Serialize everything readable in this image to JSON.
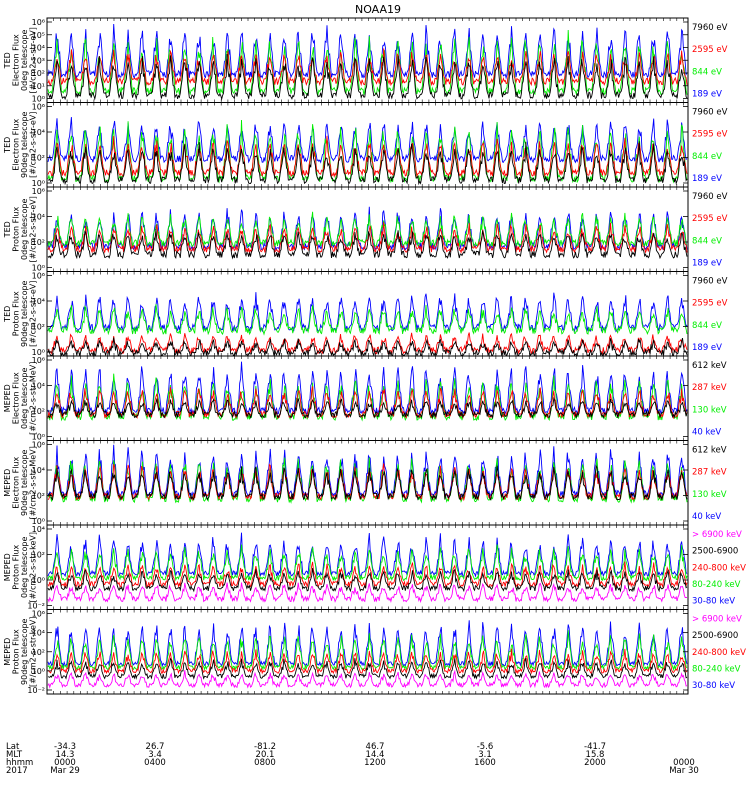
{
  "title": "NOAA19",
  "chart_data": {
    "type": "line",
    "title": "NOAA19",
    "colors": {
      "blue": "#0000ff",
      "red": "#ff0000",
      "green": "#00ee00",
      "black": "#000000",
      "magenta": "#ff00ff"
    },
    "x_axis": {
      "rows": [
        {
          "label": "Lat",
          "ticks": [
            "-34.3",
            "26.7",
            "-81.2",
            "46.7",
            "-5.6",
            "-41.7"
          ]
        },
        {
          "label": "MLT",
          "ticks": [
            "14.3",
            "3.4",
            "20.1",
            "14.4",
            "3.1",
            "15.8"
          ]
        },
        {
          "label": "hhmm",
          "ticks": [
            "0000",
            "0400",
            "0800",
            "1200",
            "1600",
            "2000",
            "0000"
          ]
        },
        {
          "label": "2017",
          "ticks": [
            "Mar 29",
            "",
            "",
            "",
            "",
            "",
            "Mar 30"
          ]
        }
      ]
    },
    "panels": [
      {
        "ylabel": [
          "TED",
          "Electron Flux",
          "0deg telescope",
          "[#/cm2-s-str-eV]"
        ],
        "yticks": [
          "10⁰",
          "10¹",
          "10²",
          "10³",
          "10⁴",
          "10⁵",
          "10⁶"
        ],
        "ylim_log": [
          0,
          6
        ],
        "series": [
          {
            "name": "7960 eV",
            "color": "black",
            "base": 0.5,
            "peak": 3.5
          },
          {
            "name": "2595 eV",
            "color": "red",
            "base": 1.5,
            "peak": 3.8
          },
          {
            "name": "844 eV",
            "color": "green",
            "base": 0.8,
            "peak": 5.0
          },
          {
            "name": "189 eV",
            "color": "blue",
            "base": 2.0,
            "peak": 5.6
          }
        ]
      },
      {
        "ylabel": [
          "TED",
          "Electron Flux",
          "90deg telescope",
          "[#/cm2-s-str-eV]"
        ],
        "yticks": [
          "10⁰",
          "10²",
          "10⁴",
          "10⁶"
        ],
        "ylim_log": [
          0,
          6
        ],
        "series": [
          {
            "name": "7960 eV",
            "color": "black",
            "base": 0.5,
            "peak": 3.2
          },
          {
            "name": "2595 eV",
            "color": "red",
            "base": 1.0,
            "peak": 3.6
          },
          {
            "name": "844 eV",
            "color": "green",
            "base": 0.6,
            "peak": 4.8
          },
          {
            "name": "189 eV",
            "color": "blue",
            "base": 2.0,
            "peak": 5.0
          }
        ]
      },
      {
        "ylabel": [
          "TED",
          "Proton Flux",
          "0deg telescope",
          "[#/cm2-s-str-eV]"
        ],
        "yticks": [
          "10⁰",
          "10²",
          "10⁴",
          "10⁶"
        ],
        "ylim_log": [
          0,
          6
        ],
        "series": [
          {
            "name": "7960 eV",
            "color": "black",
            "base": 1.2,
            "peak": 3.0
          },
          {
            "name": "2595 eV",
            "color": "red",
            "base": 1.6,
            "peak": 3.4
          },
          {
            "name": "844 eV",
            "color": "green",
            "base": 2.0,
            "peak": 4.2
          },
          {
            "name": "189 eV",
            "color": "blue",
            "base": 1.8,
            "peak": 4.6
          }
        ]
      },
      {
        "ylabel": [
          "TED",
          "Proton Flux",
          "90deg telescope",
          "[#/cm2-s-str-eV]"
        ],
        "yticks": [
          "10⁰",
          "10²",
          "10⁴",
          "10⁶"
        ],
        "ylim_log": [
          0,
          6
        ],
        "series": [
          {
            "name": "7960 eV",
            "color": "black",
            "base": 0.2,
            "peak": 1.2
          },
          {
            "name": "2595 eV",
            "color": "red",
            "base": 0.4,
            "peak": 1.6
          },
          {
            "name": "844 eV",
            "color": "green",
            "base": 1.8,
            "peak": 3.6
          },
          {
            "name": "189 eV",
            "color": "blue",
            "base": 2.0,
            "peak": 4.6
          }
        ]
      },
      {
        "ylabel": [
          "MEPED",
          "Electron Flux",
          "0deg telescope",
          "[#/cm2-s-str-MeV]"
        ],
        "yticks": [
          "10⁰",
          "10²",
          "10⁴",
          "10⁶"
        ],
        "ylim_log": [
          0,
          6.5
        ],
        "series": [
          {
            "name": "612 keV",
            "color": "black",
            "base": 2.0,
            "peak": 3.2
          },
          {
            "name": "287 keV",
            "color": "red",
            "base": 2.0,
            "peak": 4.2
          },
          {
            "name": "130 keV",
            "color": "green",
            "base": 1.8,
            "peak": 5.0
          },
          {
            "name": "40 keV",
            "color": "blue",
            "base": 2.3,
            "peak": 6.0
          }
        ]
      },
      {
        "ylabel": [
          "MEPED",
          "Electron Flux",
          "90deg telescope",
          "[#/cm2-s-str-MeV]"
        ],
        "yticks": [
          "10⁰",
          "10²",
          "10⁴",
          "10⁶"
        ],
        "ylim_log": [
          0,
          6.5
        ],
        "series": [
          {
            "name": "612 keV",
            "color": "black",
            "base": 2.2,
            "peak": 4.6
          },
          {
            "name": "287 keV",
            "color": "red",
            "base": 2.2,
            "peak": 4.8
          },
          {
            "name": "130 keV",
            "color": "green",
            "base": 2.0,
            "peak": 5.4
          },
          {
            "name": "40 keV",
            "color": "blue",
            "base": 2.4,
            "peak": 6.2
          }
        ]
      },
      {
        "ylabel": [
          "MEPED",
          "Proton Flux",
          "0deg telescope",
          "[#/cm2-s-str-keV]"
        ],
        "yticks": [
          "10⁻²",
          "10⁰",
          "10²",
          "10⁴"
        ],
        "ylim_log": [
          -3,
          5
        ],
        "series": [
          {
            "name": "> 6900 keV",
            "color": "magenta",
            "base": -2.0,
            "peak": -0.5
          },
          {
            "name": "2500-6900",
            "color": "black",
            "base": -1.0,
            "peak": 0.8
          },
          {
            "name": "240-800 keV",
            "color": "red",
            "base": -0.6,
            "peak": 1.5
          },
          {
            "name": "80-240 keV",
            "color": "green",
            "base": 0.0,
            "peak": 3.2
          },
          {
            "name": "30-80 keV",
            "color": "blue",
            "base": 0.4,
            "peak": 4.2
          }
        ]
      },
      {
        "ylabel": [
          "MEPED",
          "Proton Flux",
          "90deg telescope",
          "[#/cm2-s-str-keV]"
        ],
        "yticks": [
          "10⁻²",
          "10⁰",
          "10²",
          "10⁴",
          "10⁶"
        ],
        "ylim_log": [
          -3,
          6.5
        ],
        "series": [
          {
            "name": "> 6900 keV",
            "color": "magenta",
            "base": -2.0,
            "peak": -0.5
          },
          {
            "name": "2500-6900",
            "color": "black",
            "base": -1.0,
            "peak": 1.0
          },
          {
            "name": "240-800 keV",
            "color": "red",
            "base": -0.4,
            "peak": 2.0
          },
          {
            "name": "80-240 keV",
            "color": "green",
            "base": 0.0,
            "peak": 4.0
          },
          {
            "name": "30-80 keV",
            "color": "blue",
            "base": 0.4,
            "peak": 5.5
          }
        ]
      }
    ]
  }
}
